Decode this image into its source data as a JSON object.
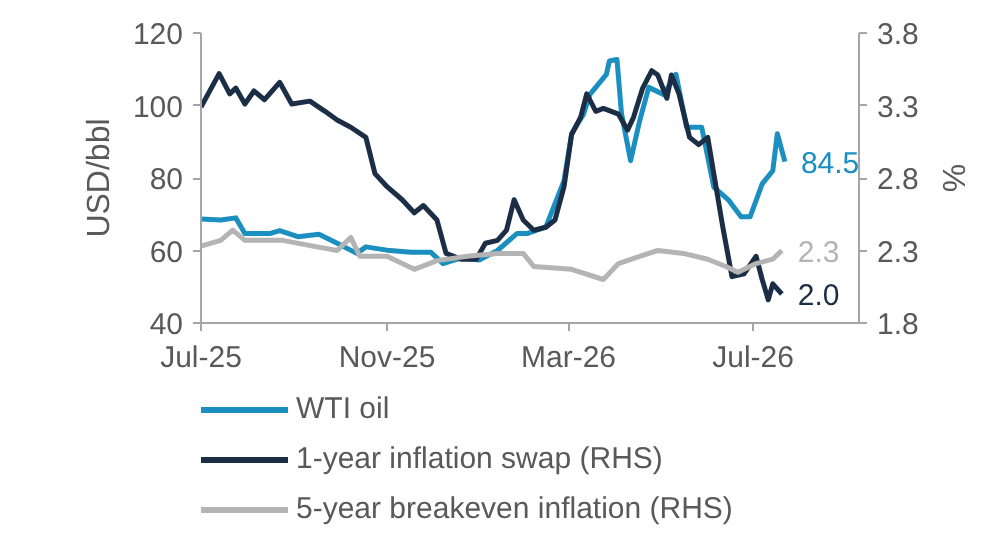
{
  "chart_data": {
    "type": "line",
    "ylabel": "USD/bbl",
    "y2label": "%",
    "xlim": [
      "2025-07-01",
      "2026-09-09"
    ],
    "xticks": [
      {
        "value": "2025-07-01",
        "label": "Jul-25"
      },
      {
        "value": "2025-11-01",
        "label": "Nov-25"
      },
      {
        "value": "2026-03-01",
        "label": "Mar-26"
      },
      {
        "value": "2026-07-01",
        "label": "Jul-26"
      }
    ],
    "ylim": [
      40,
      120
    ],
    "yticks": [
      40,
      60,
      80,
      100,
      120
    ],
    "y2lim": [
      1.8,
      3.8
    ],
    "y2ticks": [
      1.8,
      2.3,
      2.8,
      3.3,
      3.8
    ],
    "grid": false,
    "legend": "bottom",
    "line_style": "solid",
    "marker": "none",
    "series": [
      {
        "name": "WTI oil",
        "color": "#1a8fc0",
        "x": [
          "2025-07-01",
          "2025-07-14",
          "2025-07-24",
          "2025-07-30",
          "2025-08-16",
          "2025-08-22",
          "2025-09-03",
          "2025-09-17",
          "2025-09-29",
          "2025-10-12",
          "2025-10-18",
          "2025-11-01",
          "2025-11-17",
          "2025-11-30",
          "2025-12-08",
          "2025-12-20",
          "2026-01-01",
          "2026-01-13",
          "2026-01-26",
          "2026-02-02",
          "2026-02-14",
          "2026-02-26",
          "2026-03-03",
          "2026-03-11",
          "2026-03-15",
          "2026-03-26",
          "2026-03-28",
          "2026-04-02",
          "2026-04-05",
          "2026-04-11",
          "2026-04-17",
          "2026-04-23",
          "2026-05-03",
          "2026-05-11",
          "2026-05-18",
          "2026-05-28",
          "2026-06-05",
          "2026-06-15",
          "2026-06-23",
          "2026-06-29",
          "2026-07-07",
          "2026-07-14",
          "2026-07-17",
          "2026-07-22"
        ],
        "values": [
          68.7,
          68.4,
          69,
          64.7,
          64.7,
          65.5,
          63.8,
          64.5,
          62,
          59.2,
          61,
          60.1,
          59.5,
          59.5,
          56.4,
          58,
          57.4,
          60,
          64.7,
          64.7,
          66.5,
          79.3,
          92.2,
          97.7,
          103,
          108.6,
          112.3,
          112.7,
          97.7,
          84.8,
          95.8,
          105,
          103,
          108.6,
          94,
          94,
          77.5,
          73.8,
          69.3,
          69.3,
          78.4,
          82,
          92.2,
          84.5
        ],
        "value_labels": [
          null,
          null,
          null,
          null,
          null,
          null,
          null,
          null,
          null,
          null,
          null,
          null,
          null,
          null,
          null,
          null,
          null,
          null,
          null,
          null,
          null,
          null,
          null,
          null,
          null,
          null,
          null,
          null,
          null,
          null,
          null,
          null,
          null,
          null,
          null,
          null,
          null,
          null,
          null,
          null,
          null,
          null,
          null,
          "84.5"
        ]
      },
      {
        "name": "1-year inflation swap (RHS)",
        "color": "#1b2e45",
        "axis": "y2",
        "x": [
          "2025-07-01",
          "2025-07-13",
          "2025-07-20",
          "2025-07-24",
          "2025-07-30",
          "2025-08-05",
          "2025-08-12",
          "2025-08-22",
          "2025-08-30",
          "2025-09-11",
          "2025-09-21",
          "2025-09-29",
          "2025-10-08",
          "2025-10-18",
          "2025-10-24",
          "2025-11-01",
          "2025-11-11",
          "2025-11-19",
          "2025-11-25",
          "2025-12-04",
          "2025-12-10",
          "2025-12-20",
          "2025-12-30",
          "2026-01-05",
          "2026-01-13",
          "2026-01-19",
          "2026-01-24",
          "2026-01-30",
          "2026-02-06",
          "2026-02-14",
          "2026-02-20",
          "2026-02-26",
          "2026-03-03",
          "2026-03-09",
          "2026-03-13",
          "2026-03-19",
          "2026-03-24",
          "2026-04-03",
          "2026-04-09",
          "2026-04-13",
          "2026-04-19",
          "2026-04-25",
          "2026-04-29",
          "2026-05-05",
          "2026-05-08",
          "2026-05-13",
          "2026-05-20",
          "2026-05-26",
          "2026-06-01",
          "2026-06-05",
          "2026-06-11",
          "2026-06-17",
          "2026-06-25",
          "2026-07-03",
          "2026-07-07",
          "2026-07-11",
          "2026-07-14",
          "2026-07-20"
        ],
        "values": [
          3.29,
          3.52,
          3.38,
          3.42,
          3.31,
          3.4,
          3.34,
          3.46,
          3.31,
          3.33,
          3.26,
          3.2,
          3.15,
          3.08,
          2.83,
          2.74,
          2.65,
          2.56,
          2.61,
          2.51,
          2.28,
          2.24,
          2.24,
          2.35,
          2.37,
          2.44,
          2.65,
          2.51,
          2.44,
          2.46,
          2.51,
          2.74,
          3.1,
          3.22,
          3.38,
          3.26,
          3.28,
          3.24,
          3.13,
          3.22,
          3.42,
          3.54,
          3.51,
          3.35,
          3.51,
          3.38,
          3.08,
          3.03,
          3.08,
          2.83,
          2.46,
          2.12,
          2.14,
          2.26,
          2.1,
          1.96,
          2.07,
          2.0
        ],
        "value_labels": [
          null,
          null,
          null,
          null,
          null,
          null,
          null,
          null,
          null,
          null,
          null,
          null,
          null,
          null,
          null,
          null,
          null,
          null,
          null,
          null,
          null,
          null,
          null,
          null,
          null,
          null,
          null,
          null,
          null,
          null,
          null,
          null,
          null,
          null,
          null,
          null,
          null,
          null,
          null,
          null,
          null,
          null,
          null,
          null,
          null,
          null,
          null,
          null,
          null,
          null,
          null,
          null,
          null,
          null,
          null,
          null,
          null,
          "2.0"
        ]
      },
      {
        "name": "5-year breakeven inflation (RHS)",
        "color": "#b4b4b4",
        "axis": "y2",
        "x": [
          "2025-07-01",
          "2025-07-14",
          "2025-07-22",
          "2025-07-30",
          "2025-08-24",
          "2025-09-13",
          "2025-09-29",
          "2025-10-08",
          "2025-10-14",
          "2025-11-01",
          "2025-11-19",
          "2025-12-04",
          "2025-12-24",
          "2026-01-13",
          "2026-01-30",
          "2026-02-06",
          "2026-03-03",
          "2026-03-24",
          "2026-04-03",
          "2026-04-17",
          "2026-04-29",
          "2026-05-16",
          "2026-06-01",
          "2026-06-13",
          "2026-06-21",
          "2026-07-03",
          "2026-07-14",
          "2026-07-20"
        ],
        "values": [
          2.33,
          2.37,
          2.44,
          2.37,
          2.37,
          2.33,
          2.3,
          2.39,
          2.26,
          2.26,
          2.17,
          2.23,
          2.26,
          2.28,
          2.28,
          2.19,
          2.17,
          2.1,
          2.21,
          2.26,
          2.3,
          2.28,
          2.24,
          2.19,
          2.15,
          2.21,
          2.24,
          2.3
        ],
        "value_labels": [
          null,
          null,
          null,
          null,
          null,
          null,
          null,
          null,
          null,
          null,
          null,
          null,
          null,
          null,
          null,
          null,
          null,
          null,
          null,
          null,
          null,
          null,
          null,
          null,
          null,
          null,
          null,
          "2.3"
        ]
      }
    ]
  }
}
